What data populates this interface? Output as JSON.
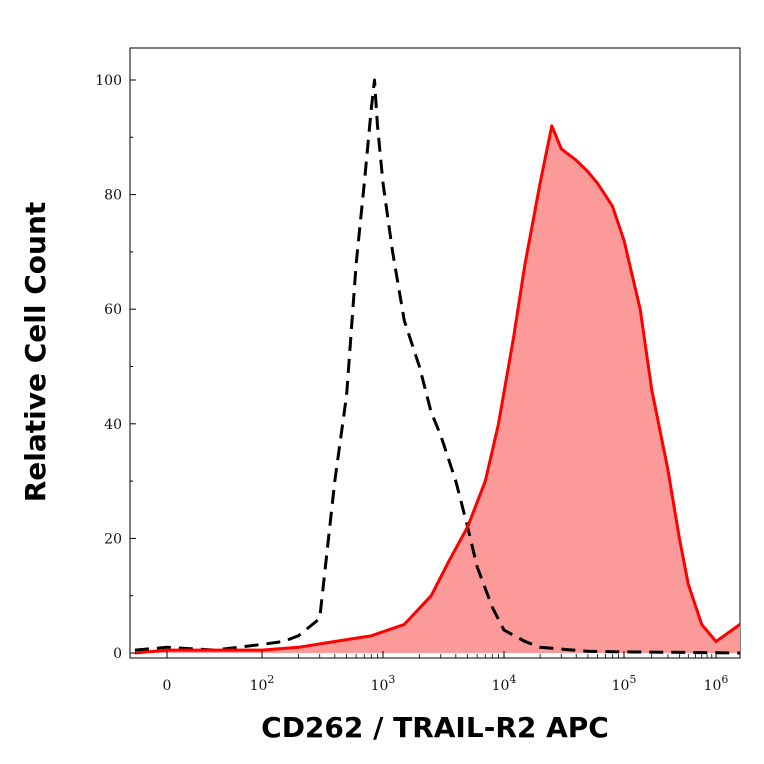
{
  "chart_data": {
    "type": "area",
    "title": "",
    "xlabel": "CD262 / TRAIL-R2 APC",
    "ylabel": "Relative Cell Count",
    "x_scale": "biexponential",
    "ylim": [
      0,
      100
    ],
    "y_ticks": [
      "0",
      "20",
      "40",
      "60",
      "80",
      "100"
    ],
    "x_ticks": [
      {
        "value": 0,
        "label": "0"
      },
      {
        "value": 100,
        "label": "10",
        "sup": "2"
      },
      {
        "value": 1000,
        "label": "10",
        "sup": "3"
      },
      {
        "value": 10000,
        "label": "10",
        "sup": "4"
      },
      {
        "value": 100000,
        "label": "10",
        "sup": "5"
      },
      {
        "value": 1000000,
        "label": "10",
        "sup": "6"
      }
    ],
    "grid": false,
    "legend": "none",
    "series": [
      {
        "style": "dashed",
        "color": "#000000",
        "fill": "none",
        "points": [
          [
            -5,
            0.5
          ],
          [
            0,
            1
          ],
          [
            50,
            0.5
          ],
          [
            100,
            1.5
          ],
          [
            150,
            2
          ],
          [
            200,
            3
          ],
          [
            300,
            6
          ],
          [
            400,
            30
          ],
          [
            500,
            45
          ],
          [
            600,
            68
          ],
          [
            700,
            82
          ],
          [
            800,
            95
          ],
          [
            850,
            100
          ],
          [
            900,
            92
          ],
          [
            1000,
            82
          ],
          [
            1200,
            70
          ],
          [
            1500,
            58
          ],
          [
            2000,
            50
          ],
          [
            2500,
            42
          ],
          [
            3000,
            38
          ],
          [
            4000,
            30
          ],
          [
            5000,
            22
          ],
          [
            6000,
            15
          ],
          [
            8000,
            8
          ],
          [
            10000,
            4
          ],
          [
            15000,
            2
          ],
          [
            20000,
            1
          ],
          [
            50000,
            0.3
          ],
          [
            100000,
            0.2
          ],
          [
            500000,
            0.1
          ],
          [
            1200000,
            0
          ]
        ]
      },
      {
        "style": "solid",
        "color": "#ff0000",
        "fill": "#fc9999",
        "points": [
          [
            -5,
            0
          ],
          [
            0,
            0.5
          ],
          [
            100,
            0.5
          ],
          [
            200,
            1
          ],
          [
            400,
            2
          ],
          [
            800,
            3
          ],
          [
            1500,
            5
          ],
          [
            2500,
            10
          ],
          [
            3500,
            16
          ],
          [
            5000,
            22
          ],
          [
            7000,
            30
          ],
          [
            9000,
            40
          ],
          [
            12000,
            55
          ],
          [
            15000,
            68
          ],
          [
            20000,
            82
          ],
          [
            25000,
            92
          ],
          [
            30000,
            88
          ],
          [
            40000,
            86
          ],
          [
            50000,
            84
          ],
          [
            60000,
            82
          ],
          [
            80000,
            78
          ],
          [
            100000,
            72
          ],
          [
            150000,
            60
          ],
          [
            200000,
            46
          ],
          [
            300000,
            32
          ],
          [
            400000,
            20
          ],
          [
            500000,
            12
          ],
          [
            700000,
            5
          ],
          [
            1000000,
            2
          ],
          [
            1200000,
            5
          ]
        ]
      }
    ]
  }
}
